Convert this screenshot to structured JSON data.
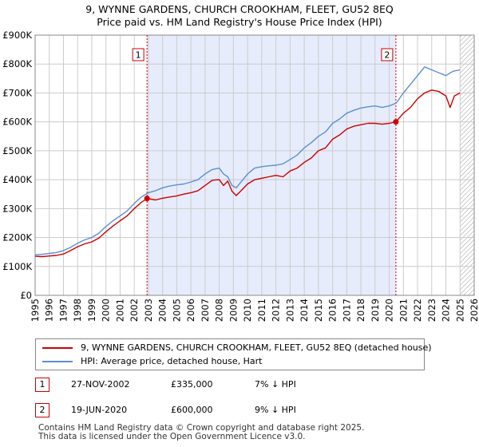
{
  "header": {
    "line1": "9, WYNNE GARDENS, CHURCH CROOKHAM, FLEET, GU52 8EQ",
    "line2": "Price paid vs. HM Land Registry's House Price Index (HPI)"
  },
  "colors": {
    "property": "#cc0000",
    "hpi": "#5b8fd0",
    "shade": "#e6ecfb",
    "grid": "#cccccc"
  },
  "chart_data": {
    "type": "line",
    "title": "9, WYNNE GARDENS, CHURCH CROOKHAM, FLEET, GU52 8EQ — Price paid vs. HM Land Registry's House Price Index (HPI)",
    "xlim": [
      1995,
      2026
    ],
    "ylim": [
      0,
      900000
    ],
    "x_ticks": [
      1995,
      1996,
      1997,
      1998,
      1999,
      2000,
      2001,
      2002,
      2003,
      2004,
      2005,
      2006,
      2007,
      2008,
      2009,
      2010,
      2011,
      2012,
      2013,
      2014,
      2015,
      2016,
      2017,
      2018,
      2019,
      2020,
      2021,
      2022,
      2023,
      2024,
      2025,
      2026
    ],
    "y_ticks": [
      {
        "value": 0,
        "label": "£0"
      },
      {
        "value": 100000,
        "label": "£100K"
      },
      {
        "value": 200000,
        "label": "£200K"
      },
      {
        "value": 300000,
        "label": "£300K"
      },
      {
        "value": 400000,
        "label": "£400K"
      },
      {
        "value": 500000,
        "label": "£500K"
      },
      {
        "value": 600000,
        "label": "£600K"
      },
      {
        "value": 700000,
        "label": "£700K"
      },
      {
        "value": 800000,
        "label": "£800K"
      },
      {
        "value": 900000,
        "label": "£900K"
      }
    ],
    "shaded_range": [
      2002.9,
      2020.47
    ],
    "future_hatch_from": 2025.0,
    "markers": [
      {
        "label": "1",
        "x": 2002.9,
        "y": 335000
      },
      {
        "label": "2",
        "x": 2020.47,
        "y": 600000
      }
    ],
    "series": [
      {
        "name": "9, WYNNE GARDENS, CHURCH CROOKHAM, FLEET, GU52 8EQ (detached house)",
        "color": "#cc0000",
        "points": [
          [
            1995.0,
            135000
          ],
          [
            1995.5,
            134000
          ],
          [
            1996.0,
            136000
          ],
          [
            1996.5,
            138000
          ],
          [
            1997.0,
            143000
          ],
          [
            1997.5,
            155000
          ],
          [
            1998.0,
            168000
          ],
          [
            1998.5,
            178000
          ],
          [
            1999.0,
            185000
          ],
          [
            1999.5,
            198000
          ],
          [
            2000.0,
            220000
          ],
          [
            2000.5,
            240000
          ],
          [
            2001.0,
            258000
          ],
          [
            2001.5,
            275000
          ],
          [
            2002.0,
            300000
          ],
          [
            2002.5,
            322000
          ],
          [
            2002.9,
            335000
          ],
          [
            2003.5,
            330000
          ],
          [
            2004.0,
            336000
          ],
          [
            2004.5,
            340000
          ],
          [
            2005.0,
            344000
          ],
          [
            2005.5,
            350000
          ],
          [
            2006.0,
            355000
          ],
          [
            2006.5,
            362000
          ],
          [
            2007.0,
            380000
          ],
          [
            2007.5,
            398000
          ],
          [
            2008.0,
            400000
          ],
          [
            2008.3,
            380000
          ],
          [
            2008.6,
            395000
          ],
          [
            2008.9,
            360000
          ],
          [
            2009.2,
            345000
          ],
          [
            2009.5,
            360000
          ],
          [
            2010.0,
            385000
          ],
          [
            2010.5,
            400000
          ],
          [
            2011.0,
            405000
          ],
          [
            2011.5,
            410000
          ],
          [
            2012.0,
            415000
          ],
          [
            2012.5,
            410000
          ],
          [
            2013.0,
            430000
          ],
          [
            2013.5,
            440000
          ],
          [
            2014.0,
            460000
          ],
          [
            2014.5,
            475000
          ],
          [
            2015.0,
            500000
          ],
          [
            2015.5,
            510000
          ],
          [
            2016.0,
            540000
          ],
          [
            2016.5,
            555000
          ],
          [
            2017.0,
            575000
          ],
          [
            2017.5,
            585000
          ],
          [
            2018.0,
            590000
          ],
          [
            2018.5,
            595000
          ],
          [
            2019.0,
            595000
          ],
          [
            2019.5,
            592000
          ],
          [
            2020.0,
            595000
          ],
          [
            2020.47,
            600000
          ],
          [
            2021.0,
            630000
          ],
          [
            2021.5,
            650000
          ],
          [
            2022.0,
            680000
          ],
          [
            2022.5,
            700000
          ],
          [
            2023.0,
            710000
          ],
          [
            2023.5,
            705000
          ],
          [
            2024.0,
            690000
          ],
          [
            2024.3,
            650000
          ],
          [
            2024.6,
            690000
          ],
          [
            2025.0,
            700000
          ]
        ]
      },
      {
        "name": "HPI: Average price, detached house, Hart",
        "color": "#5b8fd0",
        "points": [
          [
            1995.0,
            140000
          ],
          [
            1995.5,
            142000
          ],
          [
            1996.0,
            145000
          ],
          [
            1996.5,
            148000
          ],
          [
            1997.0,
            155000
          ],
          [
            1997.5,
            166000
          ],
          [
            1998.0,
            180000
          ],
          [
            1998.5,
            192000
          ],
          [
            1999.0,
            200000
          ],
          [
            1999.5,
            215000
          ],
          [
            2000.0,
            238000
          ],
          [
            2000.5,
            258000
          ],
          [
            2001.0,
            275000
          ],
          [
            2001.5,
            292000
          ],
          [
            2002.0,
            318000
          ],
          [
            2002.5,
            340000
          ],
          [
            2003.0,
            355000
          ],
          [
            2003.5,
            362000
          ],
          [
            2004.0,
            372000
          ],
          [
            2004.5,
            378000
          ],
          [
            2005.0,
            382000
          ],
          [
            2005.5,
            385000
          ],
          [
            2006.0,
            392000
          ],
          [
            2006.5,
            400000
          ],
          [
            2007.0,
            420000
          ],
          [
            2007.5,
            435000
          ],
          [
            2008.0,
            440000
          ],
          [
            2008.3,
            420000
          ],
          [
            2008.6,
            410000
          ],
          [
            2008.9,
            380000
          ],
          [
            2009.2,
            372000
          ],
          [
            2009.5,
            390000
          ],
          [
            2010.0,
            420000
          ],
          [
            2010.5,
            440000
          ],
          [
            2011.0,
            445000
          ],
          [
            2011.5,
            448000
          ],
          [
            2012.0,
            450000
          ],
          [
            2012.5,
            455000
          ],
          [
            2013.0,
            470000
          ],
          [
            2013.5,
            485000
          ],
          [
            2014.0,
            510000
          ],
          [
            2014.5,
            528000
          ],
          [
            2015.0,
            550000
          ],
          [
            2015.5,
            565000
          ],
          [
            2016.0,
            595000
          ],
          [
            2016.5,
            610000
          ],
          [
            2017.0,
            630000
          ],
          [
            2017.5,
            640000
          ],
          [
            2018.0,
            648000
          ],
          [
            2018.5,
            652000
          ],
          [
            2019.0,
            655000
          ],
          [
            2019.5,
            650000
          ],
          [
            2020.0,
            655000
          ],
          [
            2020.5,
            665000
          ],
          [
            2021.0,
            700000
          ],
          [
            2021.5,
            730000
          ],
          [
            2022.0,
            760000
          ],
          [
            2022.5,
            790000
          ],
          [
            2023.0,
            780000
          ],
          [
            2023.5,
            770000
          ],
          [
            2024.0,
            760000
          ],
          [
            2024.5,
            775000
          ],
          [
            2025.0,
            780000
          ]
        ]
      }
    ]
  },
  "legend": {
    "items": [
      {
        "label": "9, WYNNE GARDENS, CHURCH CROOKHAM, FLEET, GU52 8EQ (detached house)",
        "color": "#cc0000"
      },
      {
        "label": "HPI: Average price, detached house, Hart",
        "color": "#5b8fd0"
      }
    ]
  },
  "transactions": [
    {
      "num": "1",
      "date": "27-NOV-2002",
      "price": "£335,000",
      "hpi": "7% ↓ HPI"
    },
    {
      "num": "2",
      "date": "19-JUN-2020",
      "price": "£600,000",
      "hpi": "9% ↓ HPI"
    }
  ],
  "footer": {
    "line1": "Contains HM Land Registry data © Crown copyright and database right 2025.",
    "line2": "This data is licensed under the Open Government Licence v3.0."
  }
}
